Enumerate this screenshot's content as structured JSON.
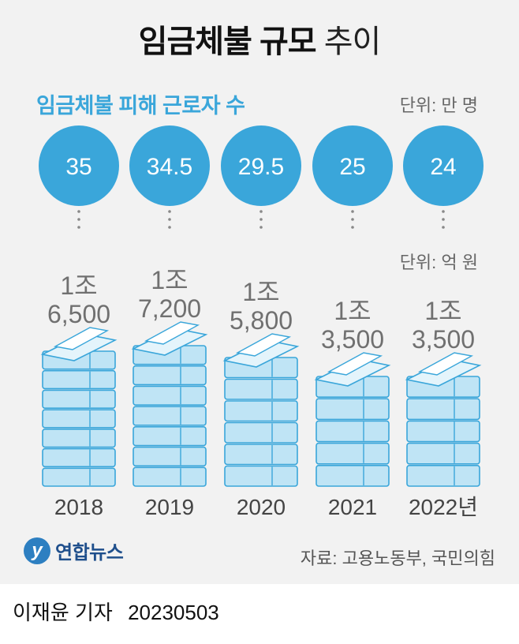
{
  "title_bold": "임금체불 규모",
  "title_rest": "추이",
  "subtitle": "임금체불 피해 근로자 수",
  "unit_workers": "단위: 만 명",
  "unit_amount": "단위: 억 원",
  "logo_text": "연합뉴스",
  "source": "자료: 고용노동부, 국민의힘",
  "byline_name": "이재윤 기자",
  "byline_date": "20230503",
  "colors": {
    "accent": "#3aa6da",
    "money_blue": "#bfe4f5",
    "money_stroke": "#3aa6da",
    "panel": "#f2f2f2"
  },
  "chart_data": {
    "type": "bar",
    "categories": [
      "2018",
      "2019",
      "2020",
      "2021",
      "2022년"
    ],
    "series": [
      {
        "name": "임금체불 피해 근로자 수",
        "unit": "만 명",
        "values": [
          35,
          34.5,
          29.5,
          25,
          24
        ],
        "labels": [
          "35",
          "34.5",
          "29.5",
          "25",
          "24"
        ]
      },
      {
        "unit": "억 원",
        "values": [
          16500,
          17200,
          15800,
          13500,
          13500
        ],
        "labels_line1": [
          "1조",
          "1조",
          "1조",
          "1조",
          "1조"
        ],
        "labels_line2": [
          "6,500",
          "7,200",
          "5,800",
          "3,500",
          "3,500"
        ]
      }
    ]
  }
}
